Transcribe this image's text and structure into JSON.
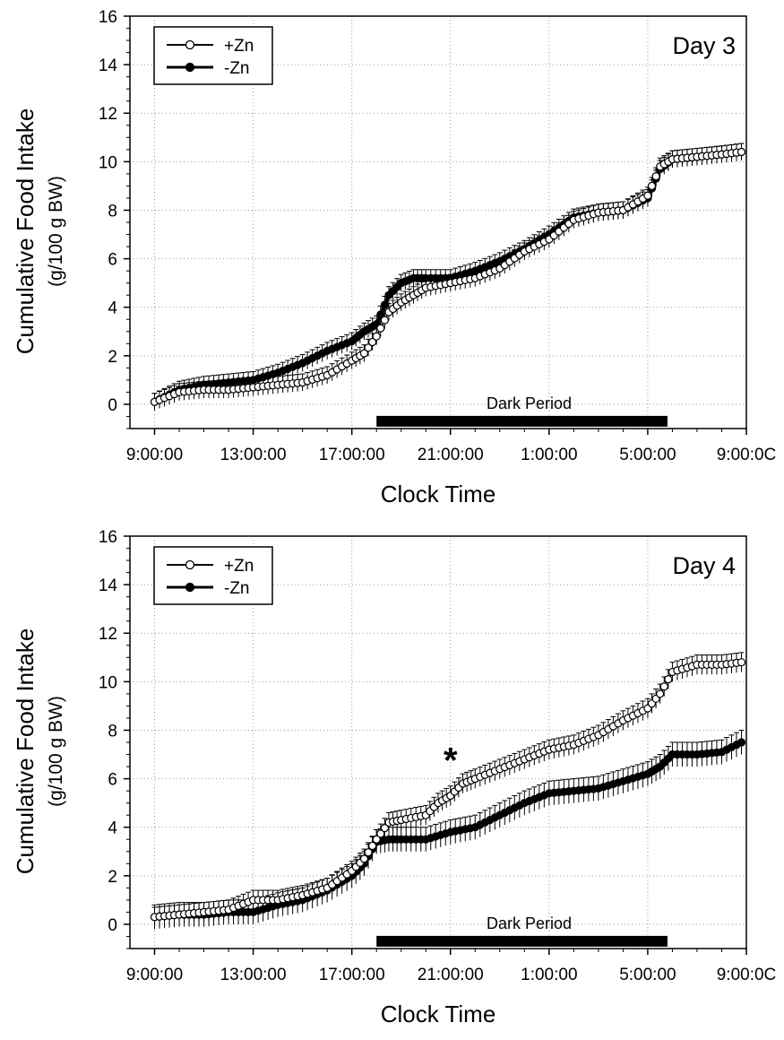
{
  "chart_data": [
    {
      "type": "line",
      "panel_label": "Day 3",
      "ylabel": "Cumulative Food Intake",
      "ylabel_sub": "(g/100 g BW)",
      "xlabel": "Clock Time",
      "x_tick_labels": [
        "9:00:00",
        "13:00:00",
        "17:00:00",
        "21:00:00",
        "1:00:00",
        "5:00:00",
        "9:00:0C"
      ],
      "x_tick_hours": [
        0,
        4,
        8,
        12,
        16,
        20,
        24
      ],
      "xlim": [
        -1,
        24
      ],
      "y_ticks": [
        0,
        2,
        4,
        6,
        8,
        10,
        12,
        14,
        16
      ],
      "ylim": [
        -1,
        16
      ],
      "grid": true,
      "legend_position": "top-left",
      "dark_period": {
        "label": "Dark Period",
        "start_hour": 9,
        "end_hour": 20.8
      },
      "annotation": "",
      "series": [
        {
          "name": "+Zn",
          "marker": "open-circle",
          "x": [
            0,
            1,
            2,
            3,
            4,
            5,
            6,
            7,
            8,
            8.5,
            9,
            9.5,
            10,
            10.5,
            11,
            12,
            13,
            14,
            15,
            16,
            17,
            18,
            19,
            20,
            20.5,
            21,
            22,
            23,
            23.8
          ],
          "y": [
            0.1,
            0.5,
            0.6,
            0.6,
            0.7,
            0.8,
            0.9,
            1.2,
            1.8,
            2.1,
            2.8,
            3.8,
            4.2,
            4.5,
            4.8,
            5.0,
            5.2,
            5.6,
            6.3,
            6.8,
            7.6,
            7.9,
            8.0,
            8.6,
            9.8,
            10.1,
            10.2,
            10.3,
            10.4
          ],
          "err": 0.35
        },
        {
          "name": "-Zn",
          "marker": "filled-circle",
          "x": [
            0,
            1,
            2,
            3,
            4,
            5,
            6,
            7,
            8,
            8.5,
            9,
            9.5,
            10,
            10.5,
            11,
            12,
            13,
            14,
            15,
            16,
            17,
            18,
            19,
            20,
            20.5,
            21,
            22,
            23,
            23.8
          ],
          "y": [
            0.1,
            0.6,
            0.8,
            0.9,
            1.0,
            1.3,
            1.7,
            2.2,
            2.6,
            3.0,
            3.3,
            4.5,
            5.0,
            5.2,
            5.2,
            5.2,
            5.5,
            5.9,
            6.4,
            7.0,
            7.7,
            7.9,
            8.0,
            8.5,
            9.7,
            10.1,
            10.2,
            10.3,
            10.4
          ],
          "err": 0.35
        }
      ]
    },
    {
      "type": "line",
      "panel_label": "Day 4",
      "ylabel": "Cumulative Food Intake",
      "ylabel_sub": "(g/100 g BW)",
      "xlabel": "Clock Time",
      "x_tick_labels": [
        "9:00:00",
        "13:00:00",
        "17:00:00",
        "21:00:00",
        "1:00:00",
        "5:00:00",
        "9:00:0C"
      ],
      "x_tick_hours": [
        0,
        4,
        8,
        12,
        16,
        20,
        24
      ],
      "xlim": [
        -1,
        24
      ],
      "y_ticks": [
        0,
        2,
        4,
        6,
        8,
        10,
        12,
        14,
        16
      ],
      "ylim": [
        -1,
        16
      ],
      "grid": true,
      "legend_position": "top-left",
      "dark_period": {
        "label": "Dark Period",
        "start_hour": 9,
        "end_hour": 20.8
      },
      "annotation": "*",
      "annotation_x": 12,
      "annotation_y": 7.0,
      "series": [
        {
          "name": "+Zn",
          "marker": "open-circle",
          "x": [
            0,
            1,
            2,
            3,
            4,
            5,
            6,
            7,
            8,
            8.5,
            9,
            9.5,
            10,
            11,
            11.5,
            12,
            12.5,
            13,
            14,
            15,
            16,
            17,
            18,
            19,
            20,
            20.5,
            21,
            22,
            23,
            23.8
          ],
          "y": [
            0.3,
            0.4,
            0.5,
            0.6,
            1.0,
            1.0,
            1.2,
            1.5,
            2.2,
            2.7,
            3.5,
            4.2,
            4.3,
            4.5,
            5.0,
            5.3,
            5.8,
            6.0,
            6.4,
            6.8,
            7.2,
            7.4,
            7.8,
            8.4,
            8.9,
            9.5,
            10.4,
            10.7,
            10.7,
            10.8
          ],
          "err": 0.4
        },
        {
          "name": "-Zn",
          "marker": "filled-circle",
          "x": [
            0,
            1,
            2,
            3,
            4,
            5,
            6,
            7,
            8,
            8.5,
            9,
            9.5,
            10,
            11,
            12,
            13,
            14,
            15,
            16,
            17,
            18,
            19,
            20,
            20.5,
            21,
            22,
            23,
            23.8
          ],
          "y": [
            0.3,
            0.4,
            0.4,
            0.5,
            0.5,
            0.8,
            1.0,
            1.4,
            2.0,
            2.5,
            3.4,
            3.5,
            3.5,
            3.5,
            3.8,
            4.0,
            4.5,
            5.0,
            5.4,
            5.5,
            5.6,
            5.9,
            6.2,
            6.5,
            7.0,
            7.0,
            7.1,
            7.5
          ],
          "err": 0.5
        }
      ]
    }
  ]
}
